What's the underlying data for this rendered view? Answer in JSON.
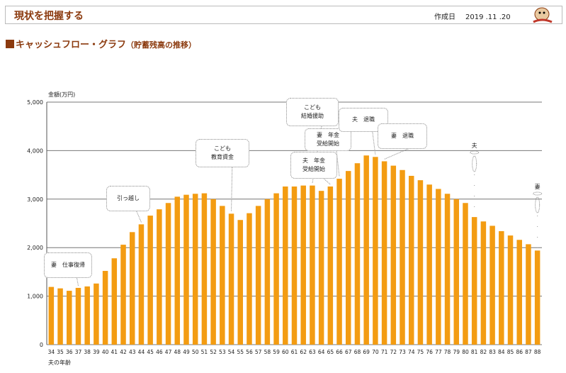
{
  "header": {
    "title": "現状を把握する",
    "date_label": "作成日",
    "date_value": "2019 .11 .20"
  },
  "section": {
    "title": "キャッシュフロー・グラフ",
    "subtitle": "（貯蓄残高の推移）"
  },
  "chart_data": {
    "type": "bar",
    "ylabel": "金額(万円)",
    "xlabel": "夫の年齢",
    "ylim": [
      0,
      5000
    ],
    "yticks": [
      "0",
      "1,000",
      "2,000",
      "3,000",
      "4,000",
      "5,000"
    ],
    "grid": true,
    "bar_color": "#f39c12",
    "categories": [
      "34",
      "35",
      "36",
      "37",
      "38",
      "39",
      "40",
      "41",
      "42",
      "43",
      "44",
      "45",
      "46",
      "47",
      "48",
      "49",
      "50",
      "51",
      "52",
      "53",
      "54",
      "55",
      "56",
      "57",
      "58",
      "59",
      "60",
      "61",
      "62",
      "63",
      "64",
      "65",
      "66",
      "67",
      "68",
      "69",
      "70",
      "71",
      "72",
      "73",
      "74",
      "75",
      "76",
      "77",
      "78",
      "79",
      "80",
      "81",
      "82",
      "83",
      "84",
      "85",
      "86",
      "87",
      "88"
    ],
    "values": [
      1190,
      1160,
      1110,
      1170,
      1200,
      1260,
      1520,
      1780,
      2060,
      2320,
      2480,
      2660,
      2790,
      2920,
      3050,
      3090,
      3110,
      3120,
      3000,
      2860,
      2700,
      2570,
      2710,
      2860,
      3000,
      3120,
      3260,
      3260,
      3280,
      3280,
      3170,
      3260,
      3420,
      3580,
      3740,
      3900,
      3870,
      3780,
      3690,
      3600,
      3480,
      3390,
      3300,
      3210,
      3110,
      3000,
      2920,
      2630,
      2540,
      2450,
      2340,
      2250,
      2160,
      2070,
      1940
    ],
    "annotations": [
      {
        "text": "妻　仕事復帰",
        "age": "37"
      },
      {
        "text": "引っ越し",
        "age": "44"
      },
      {
        "text": "こども\n教育資金",
        "age": "54"
      },
      {
        "text": "こども\n結婚援助",
        "age": "63"
      },
      {
        "text": "夫　年金\n受給開始",
        "age": "65"
      },
      {
        "text": "妻　年金\n受給開始",
        "age": "66"
      },
      {
        "text": "夫　退職",
        "age": "70"
      },
      {
        "text": "妻　退職",
        "age": "71"
      },
      {
        "text": "夫",
        "age": "81"
      },
      {
        "text": "妻",
        "age": "88"
      }
    ]
  }
}
